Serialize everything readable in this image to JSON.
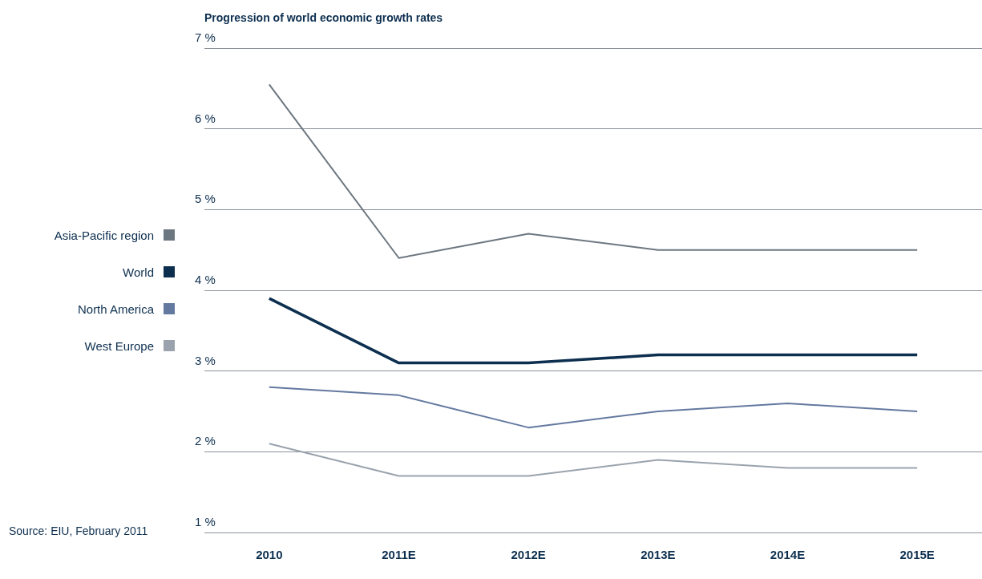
{
  "chart_data": {
    "type": "line",
    "title": "Progression of world economic growth rates",
    "categories": [
      "2010",
      "2011E",
      "2012E",
      "2013E",
      "2014E",
      "2015E"
    ],
    "series": [
      {
        "name": "Asia-Pacific region",
        "color": "#6d7780",
        "values": [
          6.55,
          4.4,
          4.7,
          4.5,
          4.5,
          4.5
        ]
      },
      {
        "name": "World",
        "color": "#0d2f4f",
        "values": [
          3.9,
          3.1,
          3.1,
          3.2,
          3.2,
          3.2
        ]
      },
      {
        "name": "North America",
        "color": "#6479a0",
        "values": [
          2.8,
          2.7,
          2.3,
          2.5,
          2.6,
          2.5
        ]
      },
      {
        "name": "West Europe",
        "color": "#9aa3ad",
        "values": [
          2.1,
          1.7,
          1.7,
          1.9,
          1.8,
          1.8
        ]
      }
    ],
    "ylim": [
      1,
      7
    ],
    "yticks": [
      {
        "value": 1,
        "label": "1 %"
      },
      {
        "value": 2,
        "label": "2 %"
      },
      {
        "value": 3,
        "label": "3 %"
      },
      {
        "value": 4,
        "label": "4 %"
      },
      {
        "value": 5,
        "label": "5 %"
      },
      {
        "value": 6,
        "label": "6 %"
      },
      {
        "value": 7,
        "label": "7 %"
      }
    ],
    "grid": "y",
    "legend": "left",
    "marker": "none",
    "annotations": [
      "Source: EIU, February 2011"
    ]
  }
}
